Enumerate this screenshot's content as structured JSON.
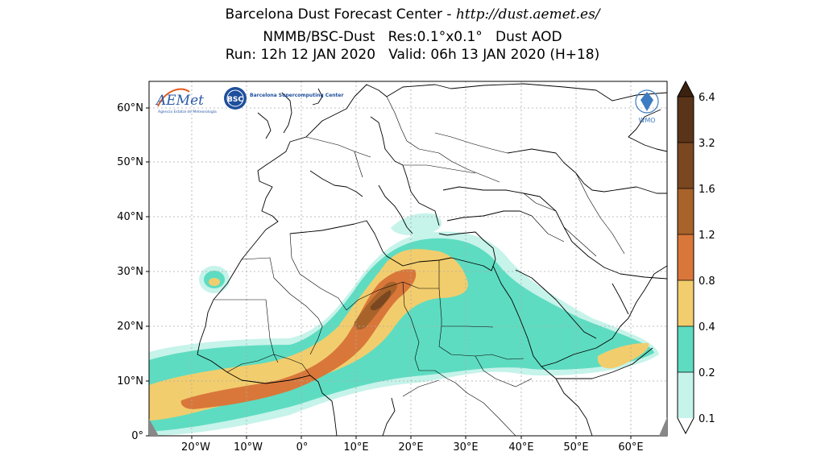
{
  "header": {
    "line1_prefix": "Barcelona Dust Forecast Center - ",
    "line1_url": "http://dust.aemet.es/",
    "line2": "NMMB/BSC-Dust   Res:0.1°x0.1°   Dust AOD",
    "line3": "Run: 12h 12 JAN 2020   Valid: 06h 13 JAN 2020 (H+18)"
  },
  "logos": {
    "aemet": "AEMet",
    "aemet_sub": "Agencia Estatal de Meteorología",
    "bsc": "BSC",
    "bsc_name": "Barcelona Supercomputing Center",
    "wmo": "WMO"
  },
  "axes": {
    "lat_labels": [
      "60°N",
      "50°N",
      "40°N",
      "30°N",
      "20°N",
      "10°N",
      "0°"
    ],
    "lon_labels": [
      "20°W",
      "10°W",
      "0°",
      "10°E",
      "20°E",
      "30°E",
      "40°E",
      "50°E",
      "60°E"
    ]
  },
  "colorbar": {
    "levels": [
      "0.1",
      "0.2",
      "0.4",
      "0.8",
      "1.2",
      "1.6",
      "3.2",
      "6.4"
    ],
    "colors": [
      "#c6f3ea",
      "#5edcc1",
      "#f2cd6d",
      "#d9773a",
      "#a8632a",
      "#7b4720",
      "#5a3419",
      "#3b2210"
    ]
  },
  "chart_data": {
    "type": "map",
    "variable": "Dust AOD",
    "extent": {
      "lon": [
        -27,
        67
      ],
      "lat": [
        0,
        65
      ]
    },
    "colorbar_levels": [
      0.1,
      0.2,
      0.4,
      0.8,
      1.2,
      1.6,
      3.2,
      6.4
    ]
  }
}
